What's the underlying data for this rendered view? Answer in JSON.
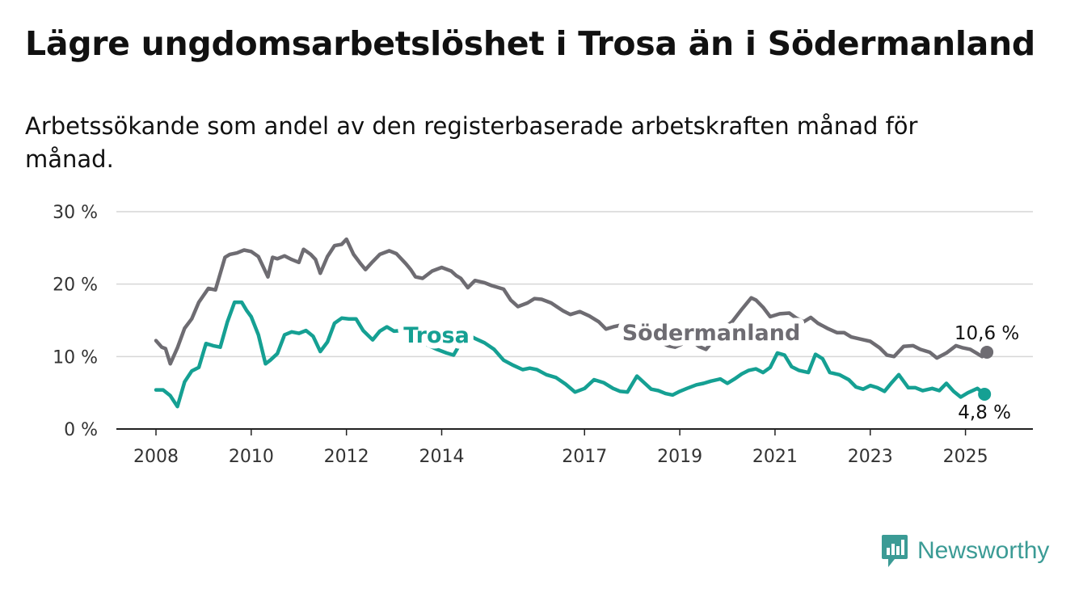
{
  "title": "Lägre ungdomsarbetslöshet i Trosa än i Södermanland",
  "subtitle": "Arbetssökande som andel av den registerbaserade arbetskraften månad för månad.",
  "brand": {
    "name": "Newsworthy",
    "icon": "newsworthy-logo-icon",
    "color": "#3b9b95"
  },
  "chart_data": {
    "type": "line",
    "x_ticks": [
      "2008",
      "2010",
      "2012",
      "2014",
      "2017",
      "2019",
      "2021",
      "2023",
      "2025"
    ],
    "y_ticks": [
      "0 %",
      "10 %",
      "20 %",
      "30 %"
    ],
    "ylim": [
      0,
      30
    ],
    "xlim": [
      2008.0,
      2025.55
    ],
    "grid": true,
    "legend": "inline labels",
    "series": [
      {
        "name": "Södermanland",
        "color": "#6e6c72",
        "end_label": "10,6 %",
        "x": [
          2008.0,
          2008.12,
          2008.2,
          2008.3,
          2008.45,
          2008.6,
          2008.75,
          2008.9,
          2009.1,
          2009.25,
          2009.45,
          2009.55,
          2009.7,
          2009.85,
          2010.0,
          2010.15,
          2010.25,
          2010.35,
          2010.45,
          2010.55,
          2010.7,
          2010.85,
          2011.0,
          2011.1,
          2011.25,
          2011.35,
          2011.45,
          2011.6,
          2011.75,
          2011.9,
          2012.0,
          2012.15,
          2012.3,
          2012.4,
          2012.55,
          2012.7,
          2012.9,
          2013.05,
          2013.25,
          2013.35,
          2013.45,
          2013.6,
          2013.8,
          2014.0,
          2014.2,
          2014.3,
          2014.4,
          2014.55,
          2014.7,
          2014.9,
          2015.05,
          2015.3,
          2015.45,
          2015.6,
          2015.8,
          2015.95,
          2016.1,
          2016.3,
          2016.55,
          2016.7,
          2016.9,
          2017.1,
          2017.3,
          2017.45,
          2017.6,
          2017.8,
          2017.95,
          2018.1,
          2018.3,
          2018.45,
          2018.6,
          2018.75,
          2018.9,
          2019.1,
          2019.25,
          2019.4,
          2019.55,
          2019.75,
          2019.9,
          2020.1,
          2020.3,
          2020.5,
          2020.6,
          2020.75,
          2020.9,
          2021.1,
          2021.3,
          2021.45,
          2021.6,
          2021.75,
          2021.9,
          2022.1,
          2022.3,
          2022.45,
          2022.6,
          2022.8,
          2023.0,
          2023.2,
          2023.35,
          2023.5,
          2023.7,
          2023.9,
          2024.05,
          2024.25,
          2024.4,
          2024.6,
          2024.8,
          2024.95,
          2025.1,
          2025.25,
          2025.35,
          2025.45
        ],
        "y": [
          12.2,
          11.3,
          11.1,
          9.0,
          11.2,
          13.9,
          15.2,
          17.5,
          19.4,
          19.2,
          23.7,
          24.1,
          24.3,
          24.7,
          24.5,
          23.8,
          22.4,
          21.0,
          23.7,
          23.5,
          23.9,
          23.4,
          23.0,
          24.8,
          24.1,
          23.4,
          21.5,
          23.8,
          25.3,
          25.5,
          26.2,
          24.1,
          22.8,
          22.0,
          23.1,
          24.1,
          24.6,
          24.2,
          22.8,
          22.0,
          21.0,
          20.8,
          21.8,
          22.3,
          21.8,
          21.2,
          20.8,
          19.5,
          20.5,
          20.2,
          19.8,
          19.3,
          17.8,
          16.9,
          17.4,
          18.0,
          17.9,
          17.4,
          16.3,
          15.8,
          16.2,
          15.6,
          14.8,
          13.8,
          14.1,
          14.4,
          14.6,
          14.2,
          13.5,
          12.8,
          12.0,
          11.5,
          11.3,
          11.9,
          12.2,
          11.4,
          11.0,
          12.6,
          13.8,
          14.8,
          16.5,
          18.1,
          17.8,
          16.8,
          15.5,
          15.9,
          16.0,
          15.3,
          14.8,
          15.4,
          14.6,
          13.9,
          13.3,
          13.3,
          12.7,
          12.4,
          12.1,
          11.2,
          10.2,
          10.0,
          11.4,
          11.5,
          11.0,
          10.6,
          9.8,
          10.5,
          11.5,
          11.2,
          11.0,
          10.4,
          10.0,
          10.6
        ]
      },
      {
        "name": "Trosa",
        "color": "#15a093",
        "end_label": "4,8 %",
        "x": [
          2008.0,
          2008.15,
          2008.3,
          2008.45,
          2008.6,
          2008.75,
          2008.9,
          2009.05,
          2009.2,
          2009.35,
          2009.5,
          2009.65,
          2009.8,
          2009.9,
          2010.0,
          2010.15,
          2010.3,
          2010.4,
          2010.55,
          2010.7,
          2010.85,
          2011.0,
          2011.15,
          2011.3,
          2011.45,
          2011.6,
          2011.75,
          2011.9,
          2012.05,
          2012.2,
          2012.35,
          2012.55,
          2012.7,
          2012.85,
          2013.0,
          2013.15,
          2013.3,
          2013.5,
          2013.7,
          2013.9,
          2014.1,
          2014.25,
          2014.4,
          2014.55,
          2014.7,
          2014.9,
          2015.1,
          2015.3,
          2015.5,
          2015.7,
          2015.85,
          2016.0,
          2016.2,
          2016.4,
          2016.6,
          2016.8,
          2017.0,
          2017.2,
          2017.4,
          2017.6,
          2017.75,
          2017.9,
          2018.1,
          2018.25,
          2018.4,
          2018.55,
          2018.7,
          2018.85,
          2019.0,
          2019.15,
          2019.35,
          2019.5,
          2019.65,
          2019.85,
          2020.0,
          2020.15,
          2020.3,
          2020.45,
          2020.6,
          2020.75,
          2020.9,
          2021.05,
          2021.2,
          2021.35,
          2021.5,
          2021.7,
          2021.85,
          2022.0,
          2022.15,
          2022.35,
          2022.55,
          2022.7,
          2022.85,
          2023.0,
          2023.15,
          2023.3,
          2023.45,
          2023.6,
          2023.8,
          2023.95,
          2024.1,
          2024.3,
          2024.45,
          2024.6,
          2024.75,
          2024.9,
          2025.05,
          2025.25,
          2025.4
        ],
        "y": [
          5.4,
          5.4,
          4.6,
          3.1,
          6.5,
          8.0,
          8.5,
          11.8,
          11.5,
          11.3,
          14.8,
          17.5,
          17.5,
          16.4,
          15.5,
          13.0,
          9.0,
          9.5,
          10.4,
          13.0,
          13.4,
          13.2,
          13.6,
          12.8,
          10.7,
          12.0,
          14.6,
          15.3,
          15.2,
          15.2,
          13.6,
          12.3,
          13.5,
          14.1,
          13.5,
          13.6,
          12.8,
          12.5,
          11.6,
          11.0,
          10.5,
          10.2,
          11.9,
          13.0,
          12.5,
          11.9,
          11.0,
          9.5,
          8.8,
          8.2,
          8.4,
          8.2,
          7.5,
          7.1,
          6.2,
          5.1,
          5.6,
          6.8,
          6.4,
          5.6,
          5.2,
          5.1,
          7.3,
          6.4,
          5.5,
          5.3,
          4.9,
          4.7,
          5.2,
          5.6,
          6.1,
          6.3,
          6.6,
          6.9,
          6.3,
          6.9,
          7.6,
          8.1,
          8.3,
          7.8,
          8.5,
          10.5,
          10.2,
          8.6,
          8.1,
          7.8,
          10.3,
          9.7,
          7.8,
          7.5,
          6.8,
          5.8,
          5.5,
          6.0,
          5.7,
          5.2,
          6.4,
          7.5,
          5.7,
          5.7,
          5.3,
          5.6,
          5.3,
          6.3,
          5.2,
          4.4,
          5.0,
          5.6,
          4.8
        ]
      }
    ]
  }
}
